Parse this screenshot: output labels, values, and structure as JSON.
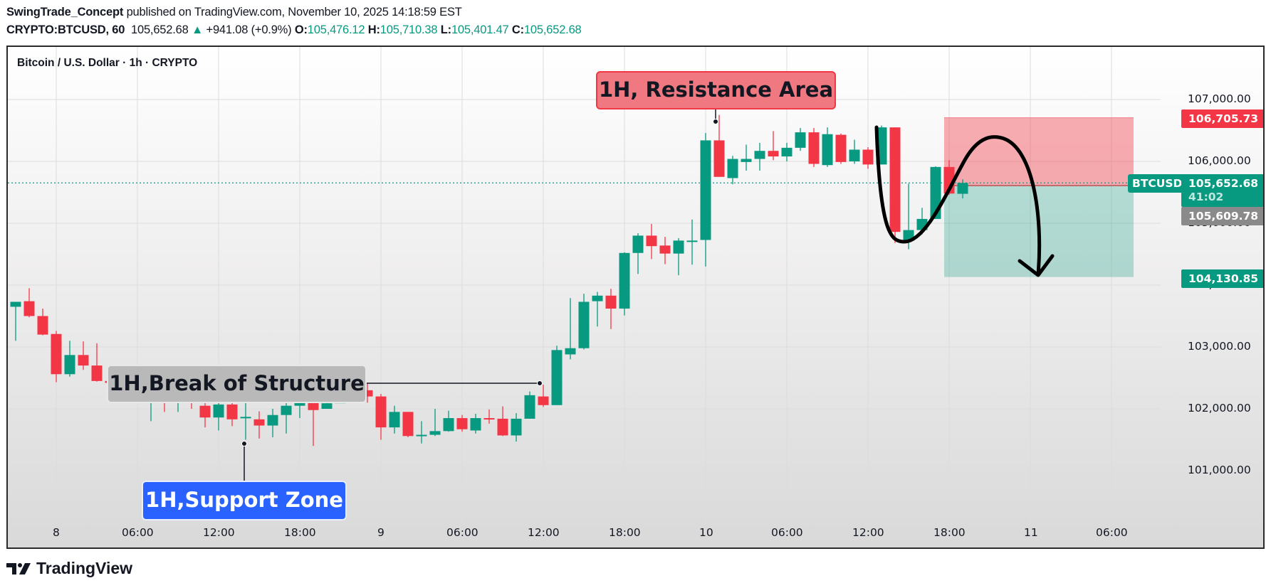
{
  "header": {
    "author": "SwingTrade_Concept",
    "published_text": "published on TradingView.com, November 10, 2025 14:18:59 EST",
    "symbol": "CRYPTO:BTCUSD, 60",
    "last_price": "105,652.68",
    "change_arrow": "▲",
    "change": "+941.08 (+0.9%)",
    "open_label": "O:",
    "open": "105,476.12",
    "high_label": "H:",
    "high": "105,710.38",
    "low_label": "L:",
    "low": "105,401.47",
    "close_label": "C:",
    "close": "105,652.68"
  },
  "chart_title": "Bitcoin / U.S. Dollar · 1h · CRYPTO",
  "price_axis": {
    "ticks": [
      "107,000.00",
      "106,000.00",
      "105,000.00",
      "104,000.00",
      "103,000.00",
      "102,000.00",
      "101,000.00"
    ],
    "tags": {
      "stop": "106,705.73",
      "last": "105,652.68",
      "countdown": "41:02",
      "entry": "105,609.78",
      "target": "104,130.85",
      "symbol_badge": "BTCUSD"
    }
  },
  "time_axis": {
    "ticks": [
      "8",
      "06:00",
      "12:00",
      "18:00",
      "9",
      "06:00",
      "12:00",
      "18:00",
      "10",
      "06:00",
      "12:00",
      "18:00",
      "11",
      "06:00"
    ]
  },
  "annotations": {
    "resistance": "1H, Resistance Area",
    "break_of_structure": "1H,Break of Structure",
    "support": "1H,Support Zone"
  },
  "colors": {
    "up": "#089981",
    "down": "#f23645",
    "support_label": "#2962ff",
    "resistance_label": "#f07880",
    "bos_label": "#b9b9b9",
    "stop_zone": "rgba(242,54,69,0.40)",
    "target_zone": "rgba(8,153,129,0.28)"
  },
  "footer": {
    "brand": "TradingView"
  },
  "chart_data": {
    "type": "candlestick",
    "title": "Bitcoin / U.S. Dollar · 1h · CRYPTO",
    "interval": "1h",
    "xlabel": "",
    "ylabel": "USD",
    "ylim": [
      100000,
      107800
    ],
    "x_ticks": [
      "8",
      "06:00",
      "12:00",
      "18:00",
      "9",
      "06:00",
      "12:00",
      "18:00",
      "10",
      "06:00",
      "12:00",
      "18:00",
      "11",
      "06:00"
    ],
    "y_ticks": [
      101000,
      102000,
      103000,
      104000,
      105000,
      106000,
      107000
    ],
    "grid": true,
    "first_bar_hours_from_nov8": -3,
    "ohlc": [
      [
        103650,
        103730,
        103100,
        103730
      ],
      [
        103740,
        103500,
        103950,
        103480
      ],
      [
        103500,
        103200,
        103620,
        103190
      ],
      [
        103210,
        102560,
        103260,
        102430
      ],
      [
        102560,
        102870,
        103100,
        102520
      ],
      [
        102870,
        102700,
        103090,
        102630
      ],
      [
        102700,
        102450,
        103060,
        102440
      ],
      [
        102450,
        102420,
        102710,
        102380
      ],
      [
        102300,
        102350,
        102510,
        102100
      ],
      [
        102350,
        102280,
        102420,
        102150
      ],
      [
        102150,
        102280,
        102400,
        101800
      ],
      [
        102280,
        102200,
        102380,
        101950
      ],
      [
        102200,
        102260,
        102400,
        101950
      ],
      [
        102260,
        102200,
        102380,
        102000
      ],
      [
        102050,
        101860,
        102300,
        101700
      ],
      [
        101860,
        102070,
        102230,
        101650
      ],
      [
        102070,
        101830,
        102140,
        101720
      ],
      [
        101870,
        101870,
        102250,
        101500
      ],
      [
        101830,
        101730,
        101960,
        101520
      ],
      [
        101730,
        101900,
        102000,
        101540
      ],
      [
        101900,
        102050,
        102200,
        101600
      ],
      [
        102050,
        102200,
        102400,
        101850
      ],
      [
        102220,
        101980,
        102250,
        101400
      ],
      [
        102000,
        102090,
        102250,
        102030
      ],
      [
        102090,
        102180,
        102300,
        102170
      ],
      [
        102250,
        102300,
        102380,
        102200
      ],
      [
        102300,
        102200,
        102420,
        102100
      ],
      [
        102200,
        101700,
        102240,
        101500
      ],
      [
        101700,
        101950,
        102050,
        101600
      ],
      [
        101950,
        101560,
        101950,
        101540
      ],
      [
        101560,
        101580,
        101800,
        101440
      ],
      [
        101580,
        101640,
        102000,
        101560
      ],
      [
        101640,
        101850,
        101970,
        101630
      ],
      [
        101850,
        101670,
        101900,
        101630
      ],
      [
        101650,
        101850,
        101920,
        101600
      ],
      [
        101850,
        101830,
        101990,
        101760
      ],
      [
        101840,
        101570,
        102040,
        101560
      ],
      [
        101570,
        101840,
        101930,
        101470
      ],
      [
        101840,
        102220,
        102280,
        101840
      ],
      [
        102200,
        102060,
        102390,
        102030
      ],
      [
        102060,
        102950,
        103020,
        102060
      ],
      [
        102880,
        102980,
        103790,
        102800
      ],
      [
        102980,
        103730,
        103860,
        102960
      ],
      [
        103740,
        103830,
        103890,
        103330
      ],
      [
        103830,
        103620,
        103940,
        103290
      ],
      [
        103620,
        104520,
        104530,
        103510
      ],
      [
        104520,
        104800,
        104840,
        104180
      ],
      [
        104800,
        104630,
        104990,
        104420
      ],
      [
        104640,
        104510,
        104780,
        104340
      ],
      [
        104510,
        104720,
        104760,
        104160
      ],
      [
        104720,
        104720,
        105060,
        104330
      ],
      [
        104730,
        106340,
        106460,
        104300
      ],
      [
        106340,
        105750,
        106750,
        105750
      ],
      [
        105730,
        106040,
        106090,
        105630
      ],
      [
        105990,
        106040,
        106270,
        105850
      ],
      [
        106040,
        106170,
        106300,
        105850
      ],
      [
        106170,
        106080,
        106490,
        106020
      ],
      [
        106080,
        106220,
        106300,
        106000
      ],
      [
        106220,
        106470,
        106540,
        106170
      ],
      [
        106470,
        105960,
        106540,
        105910
      ],
      [
        105940,
        106440,
        106550,
        105910
      ],
      [
        106430,
        105990,
        106450,
        105960
      ],
      [
        106000,
        106190,
        106350,
        105960
      ],
      [
        106190,
        105950,
        106230,
        105880
      ],
      [
        105950,
        106550,
        106580,
        105950
      ],
      [
        106550,
        104860,
        106550,
        104680
      ],
      [
        104720,
        104890,
        105640,
        104580
      ],
      [
        104890,
        105070,
        105250,
        104820
      ],
      [
        105070,
        105910,
        105920,
        105070
      ],
      [
        105910,
        105480,
        106020,
        105460
      ],
      [
        105476.12,
        105652.68,
        105710.38,
        105401.47
      ]
    ],
    "annotations": [
      {
        "text": "1H, Resistance Area",
        "anchor_price": 106750
      },
      {
        "text": "1H,Break of Structure",
        "anchor_price": 102410
      },
      {
        "text": "1H,Support Zone",
        "anchor_price": 101500
      }
    ],
    "short_position": {
      "entry": 105609.78,
      "stop": 106705.73,
      "target": 104130.85
    }
  }
}
